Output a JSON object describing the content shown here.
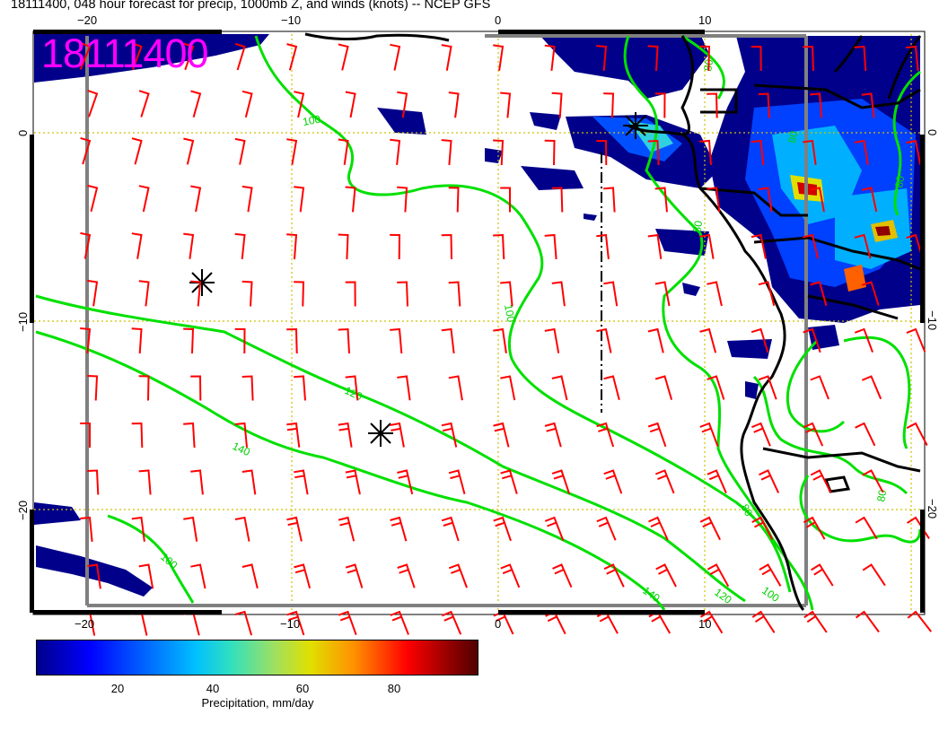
{
  "title": "18111400, 048 hour forecast for precip, 1000mb Z, and winds (knots) -- NCEP GFS",
  "stamp": "18111400",
  "axes": {
    "top_ticks": [
      "−20",
      "−10",
      "0",
      "10"
    ],
    "bottom_ticks": [
      "−20",
      "−10",
      "0",
      "10"
    ],
    "left_ticks": [
      "0",
      "−10",
      "−20"
    ],
    "right_ticks": [
      "0",
      "−10",
      "−20"
    ]
  },
  "contour_labels": [
    "100",
    "100",
    "120",
    "140",
    "100",
    "120",
    "140",
    "100",
    "80",
    "80",
    "80",
    "80",
    "80",
    "80"
  ],
  "colorbar": {
    "ticks": [
      "20",
      "40",
      "60",
      "80"
    ],
    "label": "Precipitation, mm/day"
  },
  "colors": {
    "barbs": "#ff0000",
    "contours": "#00e000",
    "coast": "#000000",
    "stamp": "#ff00ff",
    "grid": "#d0c000"
  }
}
